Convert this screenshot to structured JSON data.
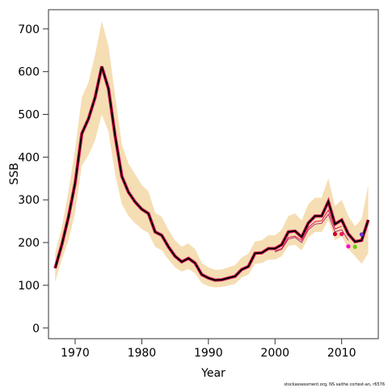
{
  "chart_data": {
    "type": "line",
    "title": "",
    "xlabel": "Year",
    "ylabel": "SSB",
    "xlim": [
      1966,
      2015.5
    ],
    "ylim": [
      -25,
      745
    ],
    "x_ticks": [
      1970,
      1980,
      1990,
      2000,
      2010
    ],
    "y_ticks": [
      0,
      100,
      200,
      300,
      400,
      500,
      600,
      700
    ],
    "grid": false,
    "legend": "none",
    "colors": {
      "band": "#f5deb3",
      "main_line": "#000000",
      "retro_line": "#e8185c",
      "retro_inner": "#b03070",
      "point_colors": [
        "#cc0033",
        "#e8185c",
        "#ff00cc",
        "#66cc00",
        "#6633cc"
      ]
    },
    "years": [
      1967,
      1968,
      1969,
      1970,
      1971,
      1972,
      1973,
      1974,
      1975,
      1976,
      1977,
      1978,
      1979,
      1980,
      1981,
      1982,
      1983,
      1984,
      1985,
      1986,
      1987,
      1988,
      1989,
      1990,
      1991,
      1992,
      1993,
      1994,
      1995,
      1996,
      1997,
      1998,
      1999,
      2000,
      2001,
      2002,
      2003,
      2004,
      2005,
      2006,
      2007,
      2008,
      2009,
      2010,
      2011,
      2012,
      2013,
      2014
    ],
    "ssb": [
      140,
      195,
      260,
      340,
      455,
      490,
      540,
      612,
      560,
      450,
      355,
      318,
      295,
      278,
      268,
      225,
      217,
      190,
      168,
      155,
      163,
      152,
      125,
      117,
      112,
      113,
      117,
      121,
      137,
      144,
      175,
      176,
      186,
      186,
      195,
      225,
      227,
      213,
      246,
      262,
      262,
      296,
      243,
      253,
      220,
      202,
      205,
      253
    ],
    "lower": [
      108,
      160,
      205,
      270,
      380,
      405,
      440,
      500,
      460,
      360,
      290,
      262,
      245,
      232,
      222,
      190,
      182,
      160,
      142,
      132,
      138,
      128,
      105,
      98,
      95,
      96,
      99,
      103,
      118,
      125,
      150,
      152,
      160,
      160,
      168,
      192,
      195,
      182,
      212,
      225,
      225,
      252,
      205,
      215,
      185,
      168,
      150,
      175
    ],
    "upper": [
      175,
      235,
      320,
      420,
      540,
      575,
      640,
      718,
      660,
      545,
      430,
      385,
      360,
      335,
      320,
      270,
      260,
      230,
      205,
      190,
      198,
      185,
      152,
      142,
      136,
      137,
      142,
      147,
      165,
      174,
      203,
      205,
      217,
      217,
      230,
      262,
      268,
      252,
      290,
      305,
      305,
      350,
      285,
      300,
      262,
      238,
      255,
      335
    ],
    "retro_series": [
      {
        "start_year": 2000,
        "values": [
          180,
          186,
          212,
          215,
          205,
          235,
          249,
          251,
          276,
          232,
          238
        ]
      },
      {
        "start_year": 2000,
        "values": [
          178,
          184,
          208,
          212,
          200,
          230,
          243,
          245,
          266,
          225,
          230,
          205
        ]
      }
    ],
    "retro_points": [
      {
        "year": 2009,
        "value": 220
      },
      {
        "year": 2010,
        "value": 220
      },
      {
        "year": 2011,
        "value": 191
      },
      {
        "year": 2012,
        "value": 190
      },
      {
        "year": 2013,
        "value": 219
      }
    ],
    "footnote": "stockassessment.org, NS saithe cortest-an, r6576"
  }
}
